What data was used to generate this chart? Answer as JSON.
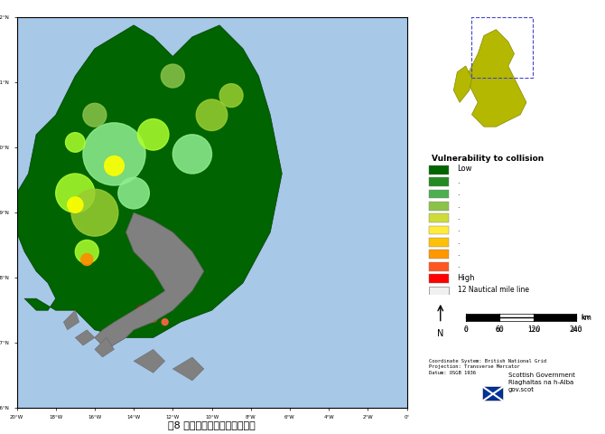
{
  "title": "図8 海鳥の衝突可能性レイヤ－",
  "background_color": "#ffffff",
  "map_bg": "#a8c8e8",
  "legend_title": "Vulnerability to collision",
  "legend_colors": [
    "#006400",
    "#228B22",
    "#4CAF50",
    "#8BC34A",
    "#CDDC39",
    "#FFEB3B",
    "#FFC107",
    "#FF9800",
    "#FF5722",
    "#FF0000"
  ],
  "legend_labels": [
    "Low",
    ".",
    ".",
    ".",
    ".",
    ".",
    ".",
    ".",
    ".",
    "High"
  ],
  "legend_box_label": "12 Nautical mile line",
  "scale_label": "km",
  "scale_values": [
    "0",
    "60",
    "120",
    "240"
  ],
  "coord_text": "Coordinate System: British National Grid\nProjection: Transverse Mercator\nDatum: OSGB 1936",
  "govt_text": "Scottish Government\nRiaghaltas na h-Alba\ngov.scot",
  "frame_color": "#4444aa",
  "outer_border": "#000000"
}
